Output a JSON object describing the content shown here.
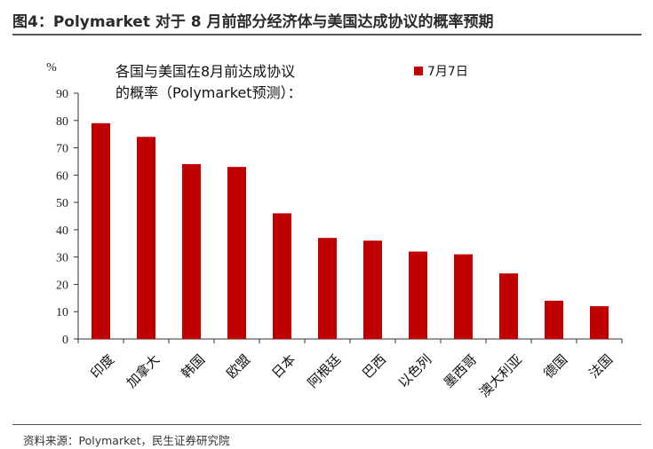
{
  "figure": {
    "title": "图4：Polymarket 对于 8 月前部分经济体与美国达成协议的概率预期",
    "source": "资料来源：Polymarket，民生证券研究院"
  },
  "chart_data": {
    "type": "bar",
    "title_lines": [
      "各国与美国在8月前达成协议",
      "的概率（Polymarket预测）："
    ],
    "ylabel": "%",
    "ylim": [
      0,
      90
    ],
    "yticks": [
      0,
      10,
      20,
      30,
      40,
      50,
      60,
      70,
      80,
      90
    ],
    "categories": [
      "印度",
      "加拿大",
      "韩国",
      "欧盟",
      "日本",
      "阿根廷",
      "巴西",
      "以色列",
      "墨西哥",
      "澳大利亚",
      "德国",
      "法国"
    ],
    "series": [
      {
        "name": "7月7日",
        "color": "#c00000",
        "values": [
          79,
          74,
          64,
          63,
          46,
          37,
          36,
          32,
          31,
          24,
          14,
          12
        ]
      }
    ],
    "legend_position": "top-right",
    "grid": false
  }
}
